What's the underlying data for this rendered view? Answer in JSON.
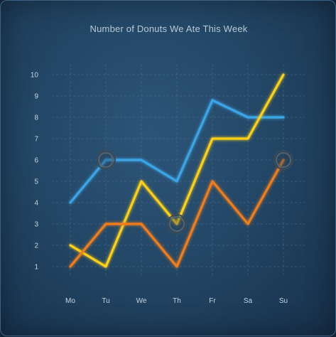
{
  "chart_data": {
    "type": "line",
    "title": "Number of Donuts We Ate This Week",
    "categories": [
      "Mo",
      "Tu",
      "We",
      "Th",
      "Fr",
      "Sa",
      "Su"
    ],
    "ylim": [
      0,
      10.5
    ],
    "yticks": [
      1,
      2,
      3,
      4,
      5,
      6,
      7,
      8,
      9,
      10
    ],
    "grid": true,
    "series": [
      {
        "color": "#3aa5e6",
        "values": [
          4,
          6,
          6,
          5,
          8.8,
          8,
          8
        ]
      },
      {
        "color": "#fdd018",
        "values": [
          2,
          1,
          5,
          3,
          7,
          7,
          10
        ]
      },
      {
        "color": "#f07d1c",
        "values": [
          1,
          3,
          3,
          1,
          5,
          3,
          6
        ]
      }
    ],
    "highlights": [
      {
        "category": "Tu",
        "value": 6
      },
      {
        "category": "Th",
        "value": 3
      },
      {
        "category": "Su",
        "value": 6
      }
    ]
  }
}
